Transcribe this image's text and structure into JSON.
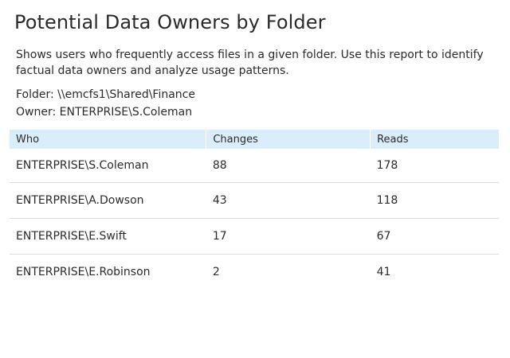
{
  "report": {
    "title": "Potential Data Owners by Folder",
    "description": "Shows users who frequently access files in a given folder. Use this report to identify factual data owners and analyze usage patterns.",
    "folder_line": "Folder: \\\\emcfs1\\Shared\\Finance",
    "owner_line": "Owner: ENTERPRISE\\S.Coleman"
  },
  "table": {
    "columns": [
      "Who",
      "Changes",
      "Reads"
    ],
    "rows": [
      {
        "who": "ENTERPRISE\\S.Coleman",
        "changes": "88",
        "reads": "178"
      },
      {
        "who": "ENTERPRISE\\A.Dowson",
        "changes": "43",
        "reads": "118"
      },
      {
        "who": "ENTERPRISE\\E.Swift",
        "changes": "17",
        "reads": "67"
      },
      {
        "who": "ENTERPRISE\\E.Robinson",
        "changes": "2",
        "reads": "41"
      }
    ]
  },
  "colors": {
    "header_background": "#d9eefa",
    "row_divider": "#dddddd",
    "text": "#2b2b2b"
  }
}
